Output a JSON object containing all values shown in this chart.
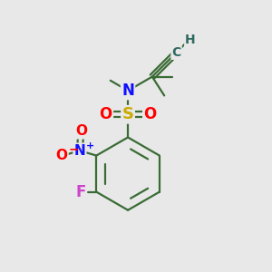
{
  "bg_color": "#e8e8e8",
  "bond_color": "#3a6b35",
  "atom_colors": {
    "N": "#1010ff",
    "S": "#ccaa00",
    "O": "#ff0000",
    "F": "#cc44cc",
    "C": "#2d6b60",
    "H": "#2d6b60"
  },
  "fig_size": [
    3.0,
    3.0
  ],
  "dpi": 100
}
